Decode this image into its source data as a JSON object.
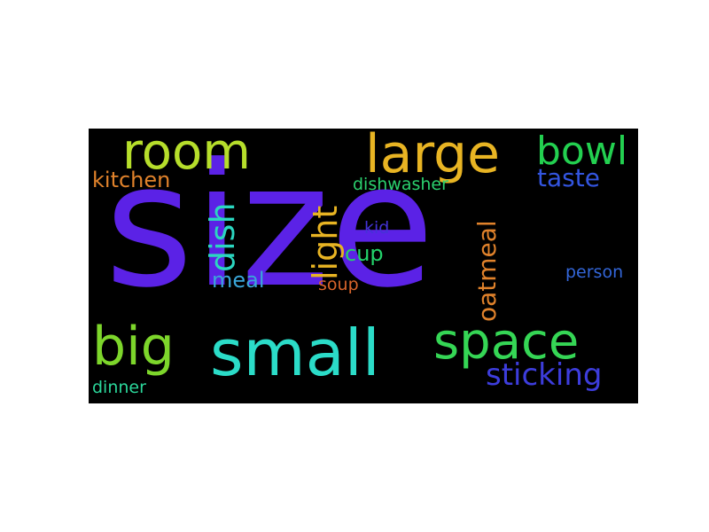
{
  "colors": {
    "page_background": "#ffffff",
    "cloud_background": "#000000"
  },
  "words": [
    {
      "id": "size",
      "text": "size",
      "color": "#5b22e6"
    },
    {
      "id": "room",
      "text": "room",
      "color": "#b6de2b"
    },
    {
      "id": "large",
      "text": "large",
      "color": "#e8b423"
    },
    {
      "id": "bowl",
      "text": "bowl",
      "color": "#23d050"
    },
    {
      "id": "kitchen",
      "text": "kitchen",
      "color": "#e0822b"
    },
    {
      "id": "dishwasher",
      "text": "dishwasher",
      "color": "#2bd06e"
    },
    {
      "id": "taste",
      "text": "taste",
      "color": "#3355e0"
    },
    {
      "id": "dish",
      "text": "dish",
      "color": "#2bd6c0"
    },
    {
      "id": "light",
      "text": "light",
      "color": "#e8b423"
    },
    {
      "id": "kid",
      "text": "kid",
      "color": "#4433d6"
    },
    {
      "id": "cup",
      "text": "cup",
      "color": "#23d36b"
    },
    {
      "id": "oatmeal",
      "text": "oatmeal",
      "color": "#e0822b"
    },
    {
      "id": "meal",
      "text": "meal",
      "color": "#3aa6d9"
    },
    {
      "id": "soup",
      "text": "soup",
      "color": "#d9652b"
    },
    {
      "id": "person",
      "text": "person",
      "color": "#3366d9"
    },
    {
      "id": "big",
      "text": "big",
      "color": "#7dd62b"
    },
    {
      "id": "small",
      "text": "small",
      "color": "#2bdcc8"
    },
    {
      "id": "space",
      "text": "space",
      "color": "#35d655"
    },
    {
      "id": "sticking",
      "text": "sticking",
      "color": "#3d3ddc"
    },
    {
      "id": "dinner",
      "text": "dinner",
      "color": "#2bd69a"
    }
  ]
}
